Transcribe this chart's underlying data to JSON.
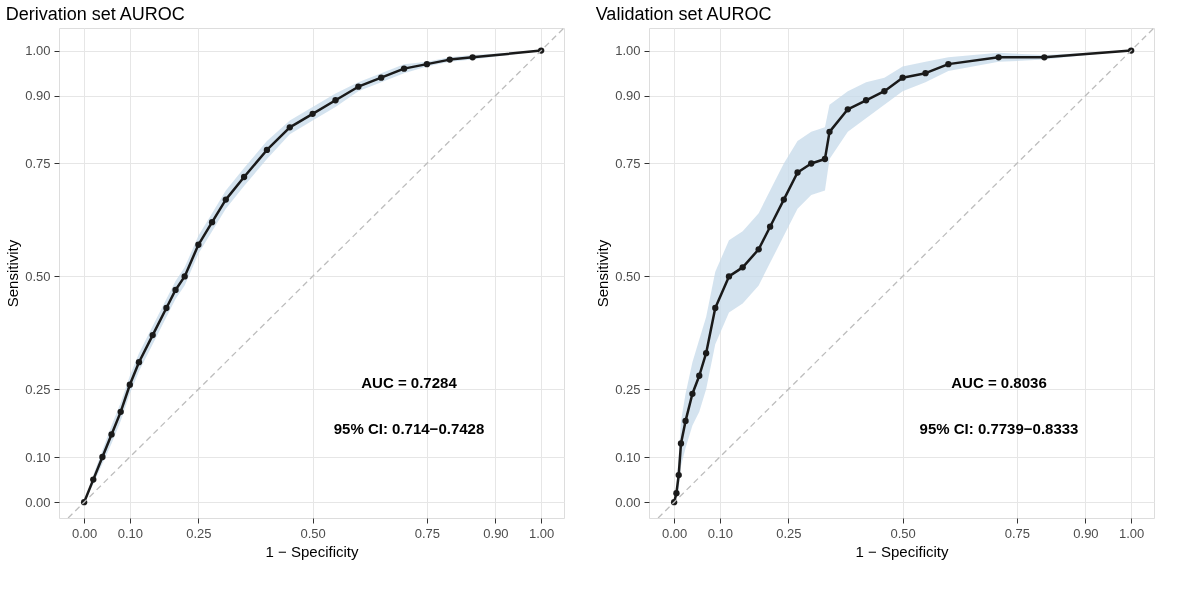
{
  "chart_data": [
    {
      "type": "line",
      "title": "Derivation set AUROC",
      "xlabel": "1 − Specificity",
      "ylabel": "Sensitivity",
      "xlim": [
        -0.055,
        1.05
      ],
      "ylim": [
        -0.035,
        1.05
      ],
      "xticks": [
        {
          "value": 0,
          "label": "0.00"
        },
        {
          "value": 0.1,
          "label": "0.10"
        },
        {
          "value": 0.25,
          "label": "0.25"
        },
        {
          "value": 0.5,
          "label": "0.50"
        },
        {
          "value": 0.75,
          "label": "0.75"
        },
        {
          "value": 0.9,
          "label": "0.90"
        },
        {
          "value": 1,
          "label": "1.00"
        }
      ],
      "yticks": [
        {
          "value": 0,
          "label": "0.00"
        },
        {
          "value": 0.1,
          "label": "0.10"
        },
        {
          "value": 0.25,
          "label": "0.25"
        },
        {
          "value": 0.5,
          "label": "0.50"
        },
        {
          "value": 0.75,
          "label": "0.75"
        },
        {
          "value": 0.9,
          "label": "0.90"
        },
        {
          "value": 1,
          "label": "1.00"
        }
      ],
      "grid": true,
      "series": [
        {
          "color": "#1a1a1a",
          "marker": "circle",
          "x": [
            0,
            0.02,
            0.04,
            0.06,
            0.08,
            0.1,
            0.12,
            0.15,
            0.18,
            0.2,
            0.22,
            0.25,
            0.28,
            0.31,
            0.35,
            0.4,
            0.45,
            0.5,
            0.55,
            0.6,
            0.65,
            0.7,
            0.75,
            0.8,
            0.85,
            1
          ],
          "values": [
            0,
            0.05,
            0.1,
            0.15,
            0.2,
            0.26,
            0.31,
            0.37,
            0.43,
            0.47,
            0.5,
            0.57,
            0.62,
            0.67,
            0.72,
            0.78,
            0.83,
            0.86,
            0.89,
            0.92,
            0.94,
            0.96,
            0.97,
            0.98,
            0.985,
            1
          ],
          "lower": [
            0,
            0.04,
            0.085,
            0.13,
            0.18,
            0.24,
            0.29,
            0.35,
            0.41,
            0.45,
            0.48,
            0.55,
            0.6,
            0.65,
            0.7,
            0.76,
            0.815,
            0.845,
            0.875,
            0.91,
            0.93,
            0.95,
            0.965,
            0.975,
            0.98,
            1
          ],
          "upper": [
            0,
            0.06,
            0.115,
            0.17,
            0.22,
            0.28,
            0.33,
            0.39,
            0.45,
            0.49,
            0.52,
            0.59,
            0.64,
            0.69,
            0.74,
            0.8,
            0.845,
            0.875,
            0.905,
            0.93,
            0.95,
            0.97,
            0.975,
            0.985,
            0.99,
            1
          ]
        },
        {
          "color": "#bdbdbd",
          "line_style": "dashed",
          "marker": "none",
          "x": [
            -0.035,
            1.05
          ],
          "values": [
            -0.035,
            1.05
          ]
        }
      ],
      "annotations": [
        "AUC = 0.7284",
        "95% CI: 0.714−0.7428"
      ]
    },
    {
      "type": "line",
      "title": "Validation set AUROC",
      "xlabel": "1 − Specificity",
      "ylabel": "Sensitivity",
      "xlim": [
        -0.055,
        1.05
      ],
      "ylim": [
        -0.035,
        1.05
      ],
      "xticks": [
        {
          "value": 0,
          "label": "0.00"
        },
        {
          "value": 0.1,
          "label": "0.10"
        },
        {
          "value": 0.25,
          "label": "0.25"
        },
        {
          "value": 0.5,
          "label": "0.50"
        },
        {
          "value": 0.75,
          "label": "0.75"
        },
        {
          "value": 0.9,
          "label": "0.90"
        },
        {
          "value": 1,
          "label": "1.00"
        }
      ],
      "yticks": [
        {
          "value": 0,
          "label": "0.00"
        },
        {
          "value": 0.1,
          "label": "0.10"
        },
        {
          "value": 0.25,
          "label": "0.25"
        },
        {
          "value": 0.5,
          "label": "0.50"
        },
        {
          "value": 0.75,
          "label": "0.75"
        },
        {
          "value": 0.9,
          "label": "0.90"
        },
        {
          "value": 1,
          "label": "1.00"
        }
      ],
      "grid": true,
      "series": [
        {
          "color": "#1a1a1a",
          "marker": "circle",
          "x": [
            0,
            0.005,
            0.01,
            0.015,
            0.025,
            0.04,
            0.055,
            0.07,
            0.09,
            0.12,
            0.15,
            0.185,
            0.21,
            0.24,
            0.27,
            0.3,
            0.33,
            0.34,
            0.38,
            0.42,
            0.46,
            0.5,
            0.55,
            0.6,
            0.71,
            0.81,
            1
          ],
          "values": [
            0,
            0.02,
            0.06,
            0.13,
            0.18,
            0.24,
            0.28,
            0.33,
            0.43,
            0.5,
            0.52,
            0.56,
            0.61,
            0.67,
            0.73,
            0.75,
            0.76,
            0.82,
            0.87,
            0.89,
            0.91,
            0.94,
            0.95,
            0.97,
            0.985,
            0.985,
            1
          ],
          "lower": [
            0,
            0.01,
            0.03,
            0.08,
            0.12,
            0.17,
            0.2,
            0.25,
            0.35,
            0.42,
            0.44,
            0.48,
            0.53,
            0.59,
            0.65,
            0.68,
            0.69,
            0.76,
            0.82,
            0.85,
            0.88,
            0.91,
            0.93,
            0.955,
            0.975,
            0.98,
            1
          ],
          "upper": [
            0,
            0.04,
            0.1,
            0.18,
            0.24,
            0.31,
            0.36,
            0.41,
            0.51,
            0.58,
            0.6,
            0.64,
            0.69,
            0.75,
            0.8,
            0.82,
            0.83,
            0.88,
            0.91,
            0.93,
            0.94,
            0.965,
            0.975,
            0.985,
            0.995,
            0.99,
            1
          ]
        },
        {
          "color": "#bdbdbd",
          "line_style": "dashed",
          "marker": "none",
          "x": [
            -0.035,
            1.05
          ],
          "values": [
            -0.035,
            1.05
          ]
        }
      ],
      "annotations": [
        "AUC = 0.8036",
        "95% CI: 0.7739−0.8333"
      ]
    }
  ]
}
